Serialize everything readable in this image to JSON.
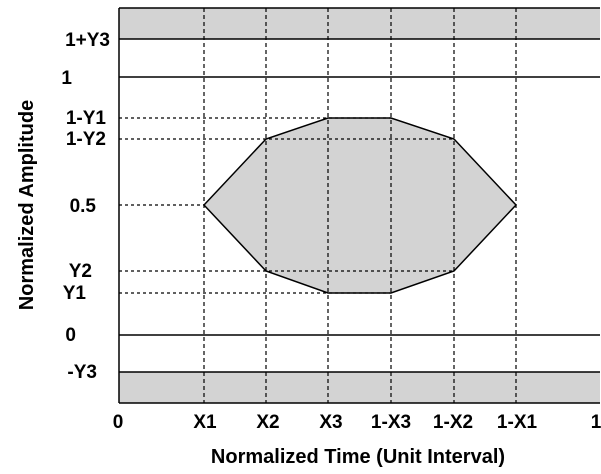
{
  "y_axis": {
    "title": "Normalized Amplitude",
    "ticks": [
      "1+Y3",
      "1",
      "1-Y1",
      "1-Y2",
      "0.5",
      "Y2",
      "Y1",
      "0",
      "-Y3"
    ]
  },
  "x_axis": {
    "title": "Normalized Time (Unit Interval)",
    "ticks": [
      "0",
      "X1",
      "X2",
      "X3",
      "1-X3",
      "1-X2",
      "1-X1",
      "1"
    ]
  },
  "colors": {
    "mask_fill": "#d3d3d3",
    "line": "#000000",
    "background": "#ffffff"
  }
}
